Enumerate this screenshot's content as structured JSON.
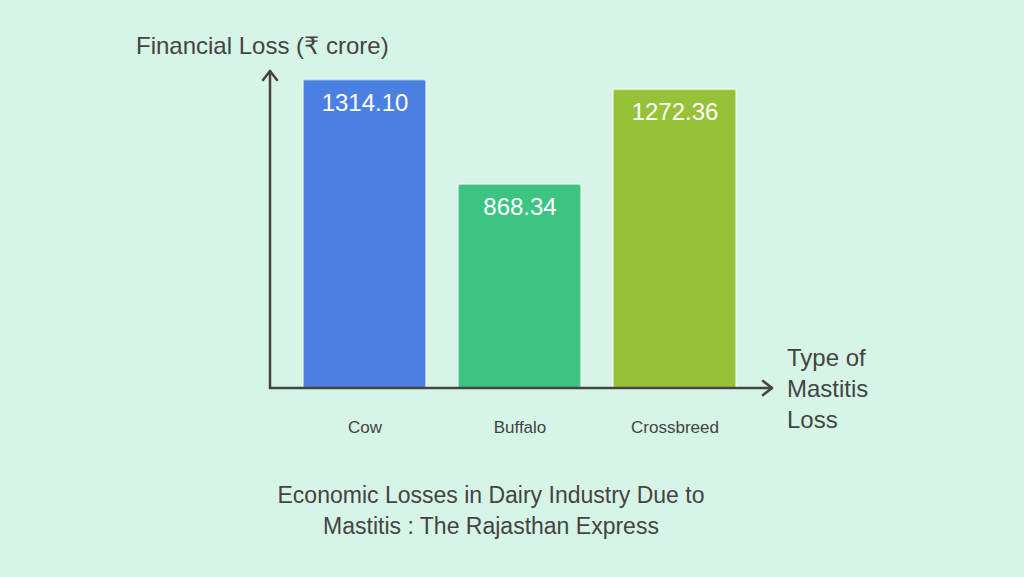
{
  "chart_data": {
    "type": "bar",
    "title": "Economic Losses in Dairy Industry Due to Mastitis : The Rajasthan Express",
    "ylabel": "Financial Loss (₹ crore)",
    "xlabel": "Type of Mastitis Loss",
    "categories": [
      "Cow",
      "Buffalo",
      "Crossbreed"
    ],
    "values": [
      1314.1,
      868.34,
      1272.36
    ],
    "value_labels": [
      "1314.10",
      "868.34",
      "1272.36"
    ],
    "colors": [
      "#4a80e2",
      "#3ec482",
      "#95c237"
    ],
    "ylim": [
      0,
      1350
    ],
    "grid": false,
    "data_labels": true,
    "tick_labels": "x"
  }
}
